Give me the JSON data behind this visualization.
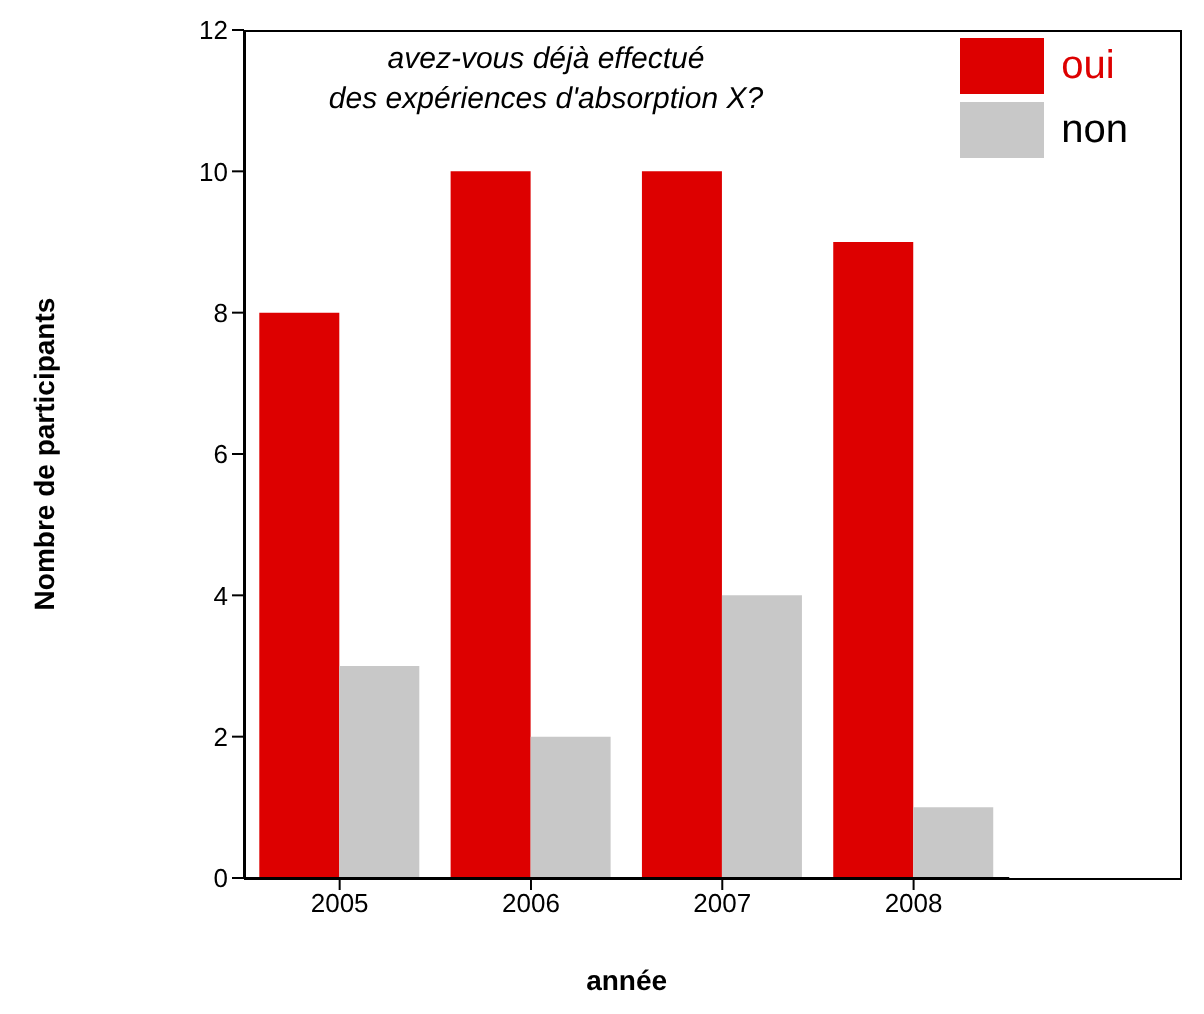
{
  "chart_data": {
    "type": "bar",
    "title": "avez-vous déjà effectué\ndes expériences d'absorption X?",
    "xlabel": "année",
    "ylabel": "Nombre de participants",
    "categories": [
      "2005",
      "2006",
      "2007",
      "2008"
    ],
    "series": [
      {
        "name": "oui",
        "color": "#dd0000",
        "values": [
          8,
          10,
          10,
          9
        ]
      },
      {
        "name": "non",
        "color": "#c8c8c8",
        "values": [
          3,
          2,
          4,
          1
        ]
      }
    ],
    "ylim": [
      0,
      12
    ],
    "yticks": [
      0,
      2,
      4,
      6,
      8,
      10,
      12
    ],
    "grid": false,
    "legend": "top right"
  }
}
